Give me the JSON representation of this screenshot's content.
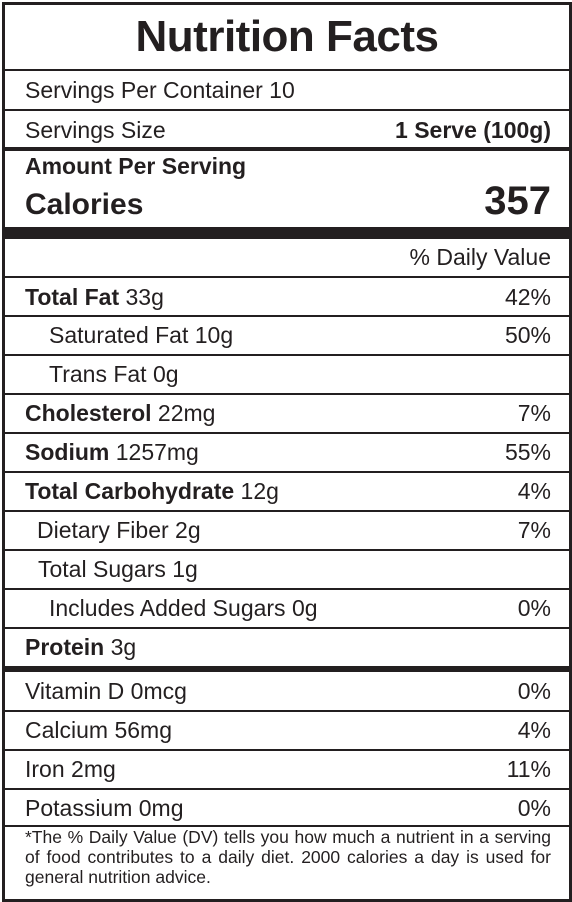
{
  "title": "Nutrition Facts",
  "servings_per_container": "Servings Per Container 10",
  "serving_size": {
    "label": "Servings Size",
    "value": "1 Serve (100g)"
  },
  "amount_per_serving": "Amount Per Serving",
  "calories": {
    "label": "Calories",
    "value": "357"
  },
  "daily_value_header": "% Daily Value",
  "nutrients": [
    {
      "name": "Total Fat",
      "amount": "33g",
      "dv": "42%"
    },
    {
      "name": "Saturated Fat",
      "amount": "10g",
      "dv": "50%"
    },
    {
      "name": "Trans Fat",
      "amount": "0g",
      "dv": ""
    },
    {
      "name": "Cholesterol",
      "amount": "22mg",
      "dv": "7%"
    },
    {
      "name": "Sodium",
      "amount": "1257mg",
      "dv": "55%"
    },
    {
      "name": "Total Carbohydrate",
      "amount": "12g",
      "dv": "4%"
    },
    {
      "name": "Dietary Fiber",
      "amount": "2g",
      "dv": "7%"
    },
    {
      "name": "Total Sugars",
      "amount": "1g",
      "dv": ""
    },
    {
      "name": "Includes Added Sugars",
      "amount": "0g",
      "dv": "0%"
    },
    {
      "name": "Protein",
      "amount": "3g",
      "dv": ""
    }
  ],
  "vitamins": [
    {
      "name": "Vitamin D",
      "amount": "0mcg",
      "dv": "0%"
    },
    {
      "name": "Calcium",
      "amount": "56mg",
      "dv": "4%"
    },
    {
      "name": "Iron",
      "amount": "2mg",
      "dv": "11%"
    },
    {
      "name": "Potassium",
      "amount": "0mg",
      "dv": "0%"
    }
  ],
  "footnote": "*The % Daily Value (DV) tells you how much a nutrient in a serving of food contributes to a daily diet. 2000 calories a day is used for general nutrition advice."
}
